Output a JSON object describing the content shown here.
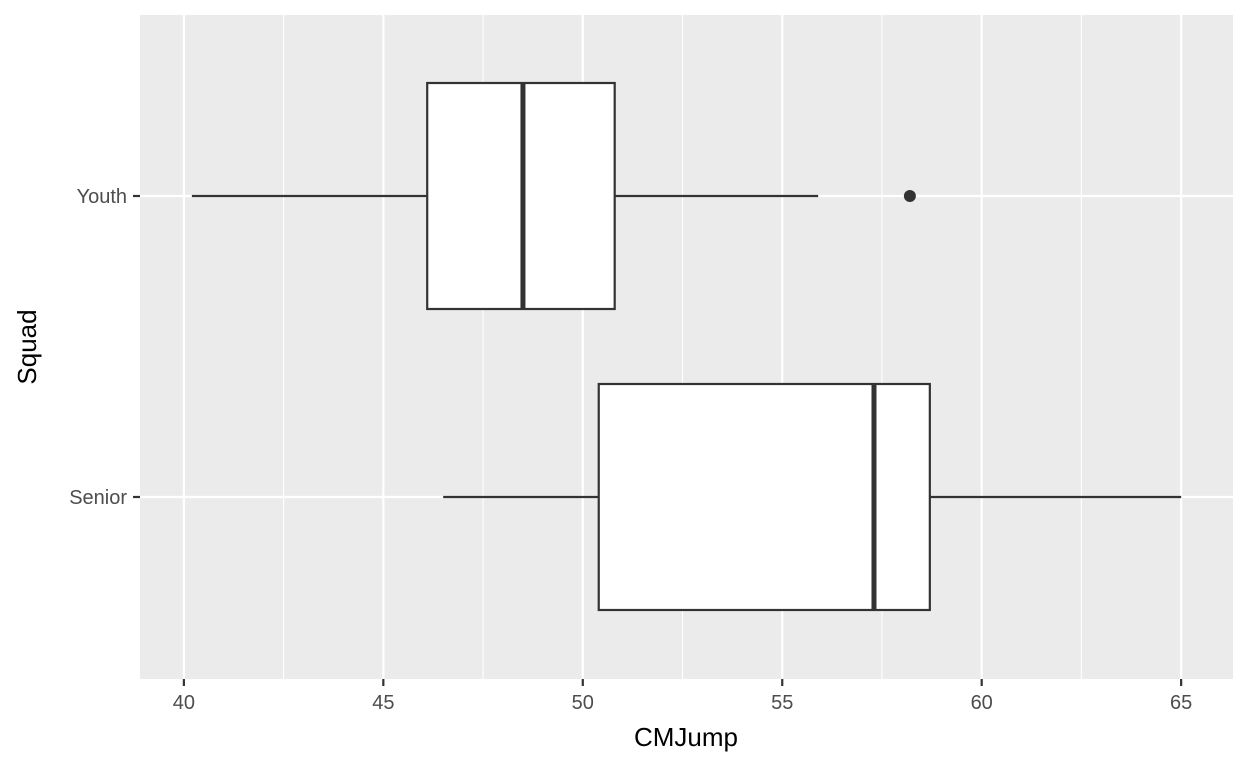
{
  "chart_data": {
    "type": "boxplot",
    "orientation": "horizontal",
    "xlabel": "CMJump",
    "ylabel": "Squad",
    "xlim": [
      38.9,
      66.3
    ],
    "x_ticks": [
      40,
      45,
      50,
      55,
      60,
      65
    ],
    "categories": [
      "Youth",
      "Senior"
    ],
    "boxes": [
      {
        "category": "Youth",
        "whisker_low": 40.2,
        "q1": 46.1,
        "median": 48.5,
        "q3": 50.8,
        "whisker_high": 55.9,
        "outliers": [
          58.2
        ]
      },
      {
        "category": "Senior",
        "whisker_low": 46.5,
        "q1": 50.4,
        "median": 57.3,
        "q3": 58.7,
        "whisker_high": 65.0,
        "outliers": []
      }
    ],
    "grid": true,
    "legend": "none",
    "colors": {
      "panel": "#ebebeb",
      "grid_major": "#ffffff",
      "box_fill": "#ffffff",
      "box_line": "#333333",
      "tick_text": "#4d4d4d",
      "title_text": "#000000"
    }
  }
}
